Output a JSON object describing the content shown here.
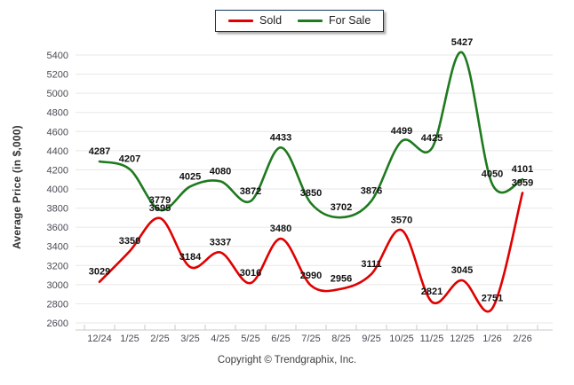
{
  "legend": {
    "items": [
      {
        "label": "Sold",
        "color": "#e00000"
      },
      {
        "label": "For Sale",
        "color": "#1e7a1e"
      }
    ]
  },
  "footer": {
    "copyright": "Copyright © Trendgraphix, Inc."
  },
  "chart_data": {
    "type": "line",
    "title": "",
    "xlabel": "",
    "ylabel": "Average Price (in $,000)",
    "categories": [
      "12/24",
      "1/25",
      "2/25",
      "3/25",
      "4/25",
      "5/25",
      "6/25",
      "7/25",
      "8/25",
      "9/25",
      "10/25",
      "11/25",
      "12/25",
      "1/26",
      "2/26"
    ],
    "series": [
      {
        "name": "Sold",
        "color": "#e00000",
        "values": [
          3029,
          3350,
          3695,
          3184,
          3337,
          3016,
          3480,
          2990,
          2956,
          3111,
          3570,
          2821,
          3045,
          2751,
          3959
        ]
      },
      {
        "name": "For Sale",
        "color": "#1e7a1e",
        "values": [
          4287,
          4207,
          3779,
          4025,
          4080,
          3872,
          4433,
          3850,
          3702,
          3876,
          4499,
          4425,
          5427,
          4050,
          4101
        ]
      }
    ],
    "ylim": [
      2600,
      5400
    ],
    "ytick_step": 200,
    "grid": "horizontal",
    "legend_position": "top",
    "data_labels": true,
    "colors": {
      "grid_line": "#e7e7e7",
      "axis_line": "#c9c9c9",
      "tick_label": "#4a4a55",
      "data_label": "#111111"
    }
  }
}
